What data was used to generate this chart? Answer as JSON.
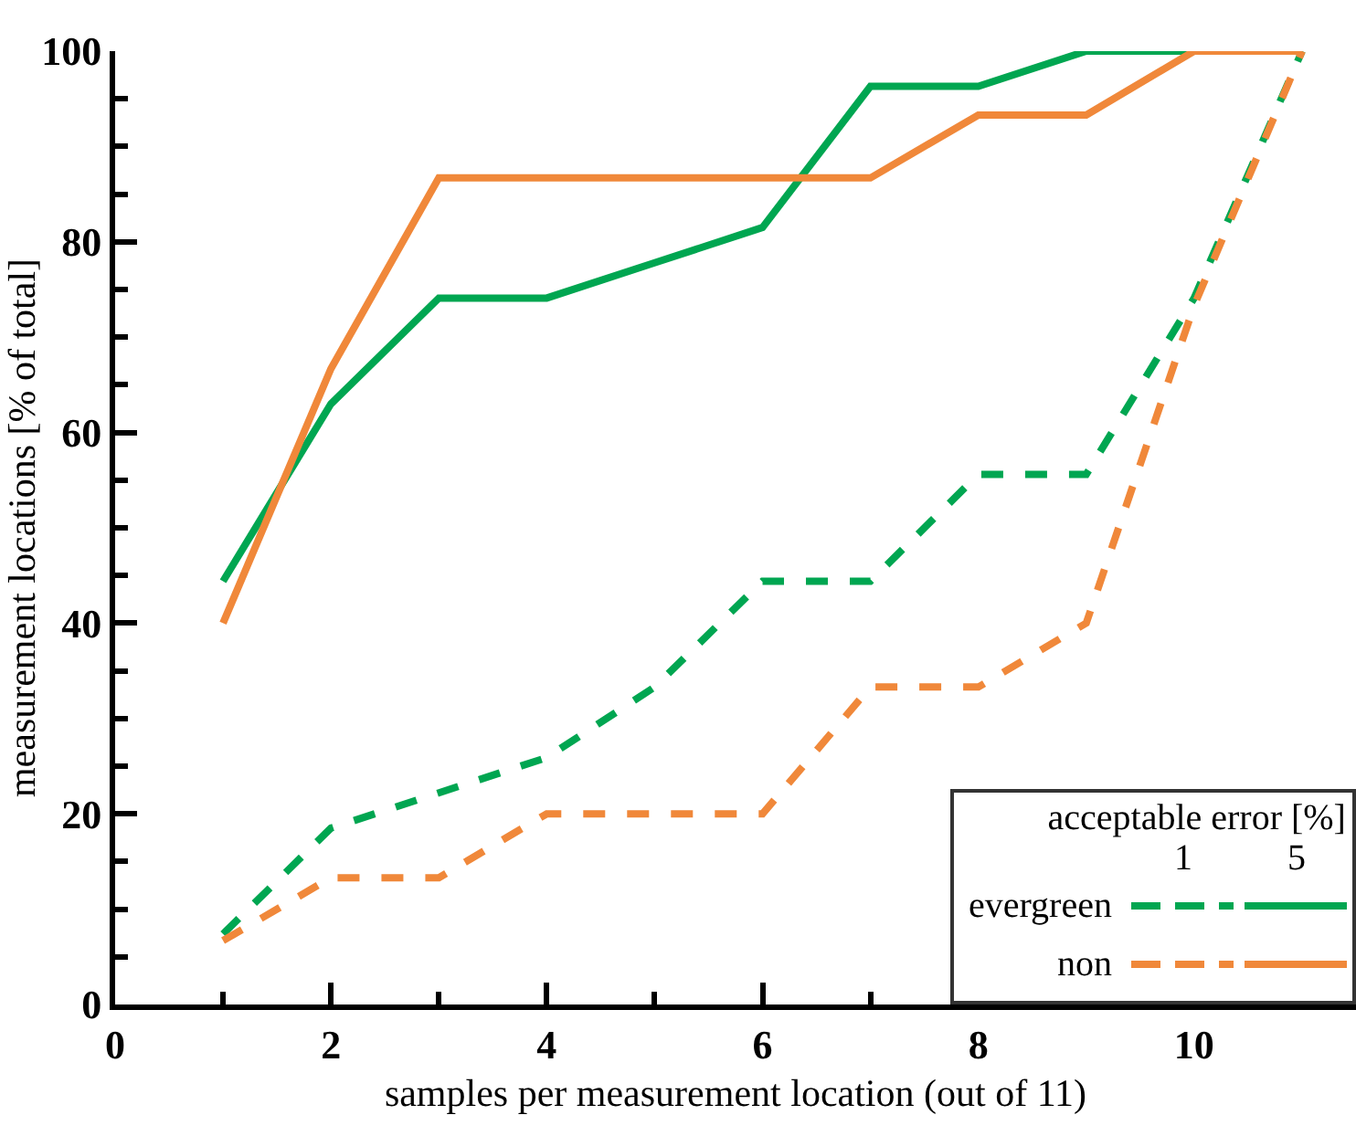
{
  "chart_data": {
    "type": "line",
    "xlabel": "samples per measurement location (out of 11)",
    "ylabel": "measurement locations [% of total]",
    "legend_title": "acceptable error [%]",
    "annotations": [
      "1",
      "5"
    ],
    "x": [
      1,
      2,
      3,
      4,
      5,
      6,
      7,
      8,
      9,
      10,
      11
    ],
    "series": [
      {
        "name": "evergreen",
        "color": "#00a651",
        "line_style": "dashed",
        "values": [
          7.4,
          18.5,
          22.2,
          25.9,
          33.3,
          44.4,
          44.4,
          55.6,
          55.6,
          74.1,
          100
        ]
      },
      {
        "color": "#00a651",
        "line_style": "solid",
        "values": [
          44.4,
          63,
          74.1,
          74.1,
          77.8,
          81.5,
          96.3,
          96.3,
          100,
          100,
          100
        ]
      },
      {
        "name": "non",
        "color": "#f0883a",
        "line_style": "dashed",
        "values": [
          6.7,
          13.3,
          13.3,
          20,
          20,
          20,
          33.3,
          33.3,
          40,
          73.3,
          100
        ]
      },
      {
        "color": "#f0883a",
        "line_style": "solid",
        "values": [
          40,
          66.7,
          86.7,
          86.7,
          86.7,
          86.7,
          86.7,
          93.3,
          93.3,
          100,
          100
        ]
      }
    ],
    "xlim": [
      0,
      11.5
    ],
    "xticks": [
      0,
      {
        "value": 1,
        "label": null
      },
      2,
      {
        "value": 3,
        "label": null
      },
      4,
      {
        "value": 5,
        "label": null
      },
      6,
      {
        "value": 7,
        "label": null
      },
      8,
      {
        "value": 9,
        "label": null
      },
      10,
      {
        "value": 11,
        "label": null
      }
    ],
    "ylim": [
      0,
      100
    ],
    "yticks": [
      0,
      {
        "value": 5,
        "label": null
      },
      {
        "value": 10,
        "label": null
      },
      {
        "value": 15,
        "label": null
      },
      20,
      {
        "value": 25,
        "label": null
      },
      {
        "value": 30,
        "label": null
      },
      {
        "value": 35,
        "label": null
      },
      40,
      {
        "value": 45,
        "label": null
      },
      {
        "value": 50,
        "label": null
      },
      {
        "value": 55,
        "label": null
      },
      60,
      {
        "value": 65,
        "label": null
      },
      {
        "value": 70,
        "label": null
      },
      {
        "value": 75,
        "label": null
      },
      80,
      {
        "value": 85,
        "label": null
      },
      {
        "value": 90,
        "label": null
      },
      {
        "value": 95,
        "label": null
      },
      100
    ],
    "grid": false,
    "legend": "bottom right",
    "marker": "none"
  }
}
